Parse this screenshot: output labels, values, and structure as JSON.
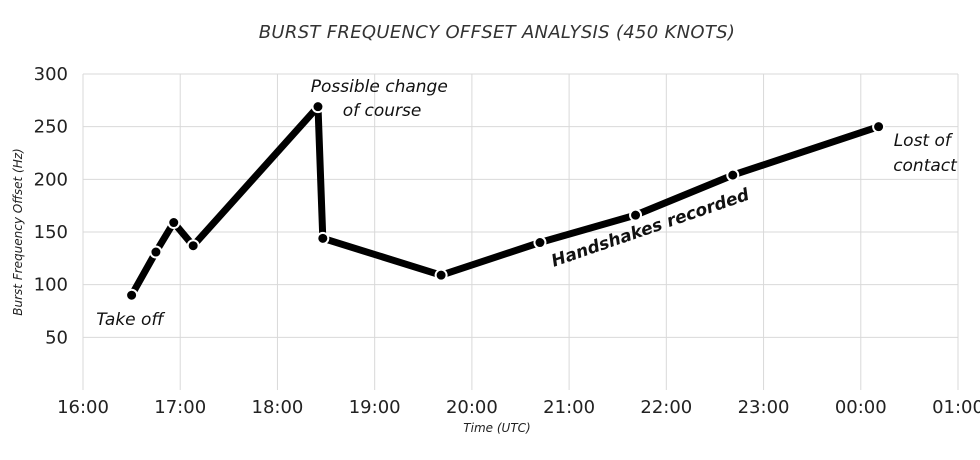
{
  "chart_data": {
    "type": "line",
    "title": "BURST FREQUENCY OFFSET ANALYSIS (450 KNOTS)",
    "xlabel": "Time (UTC)",
    "ylabel": "Burst Frequency Offset (Hz)",
    "x_ticks": [
      "16:00",
      "17:00",
      "18:00",
      "19:00",
      "20:00",
      "21:00",
      "22:00",
      "23:00",
      "00:00",
      "01:00"
    ],
    "y_ticks": [
      "50",
      "100",
      "150",
      "200",
      "250",
      "300"
    ],
    "xlim": [
      "16:00",
      "01:00"
    ],
    "ylim": [
      0,
      300
    ],
    "grid": true,
    "series": [
      {
        "color": "#000000",
        "points": [
          {
            "x": "16:30",
            "y": 90
          },
          {
            "x": "16:45",
            "y": 131
          },
          {
            "x": "16:56",
            "y": 159
          },
          {
            "x": "17:08",
            "y": 137
          },
          {
            "x": "18:25",
            "y": 269
          },
          {
            "x": "18:28",
            "y": 144
          },
          {
            "x": "19:41",
            "y": 109
          },
          {
            "x": "20:42",
            "y": 140
          },
          {
            "x": "21:41",
            "y": 166
          },
          {
            "x": "22:41",
            "y": 204
          },
          {
            "x": "00:11",
            "y": 250
          }
        ]
      }
    ],
    "annotations": [
      {
        "lines": [
          "Take off"
        ],
        "style": "italic"
      },
      {
        "lines": [
          "Possible change",
          "of course"
        ],
        "style": "italic"
      },
      {
        "lines": [
          "Handshakes recorded"
        ],
        "style": "bold-italic"
      },
      {
        "lines": [
          "Lost of",
          "contact"
        ],
        "style": "italic"
      }
    ]
  }
}
